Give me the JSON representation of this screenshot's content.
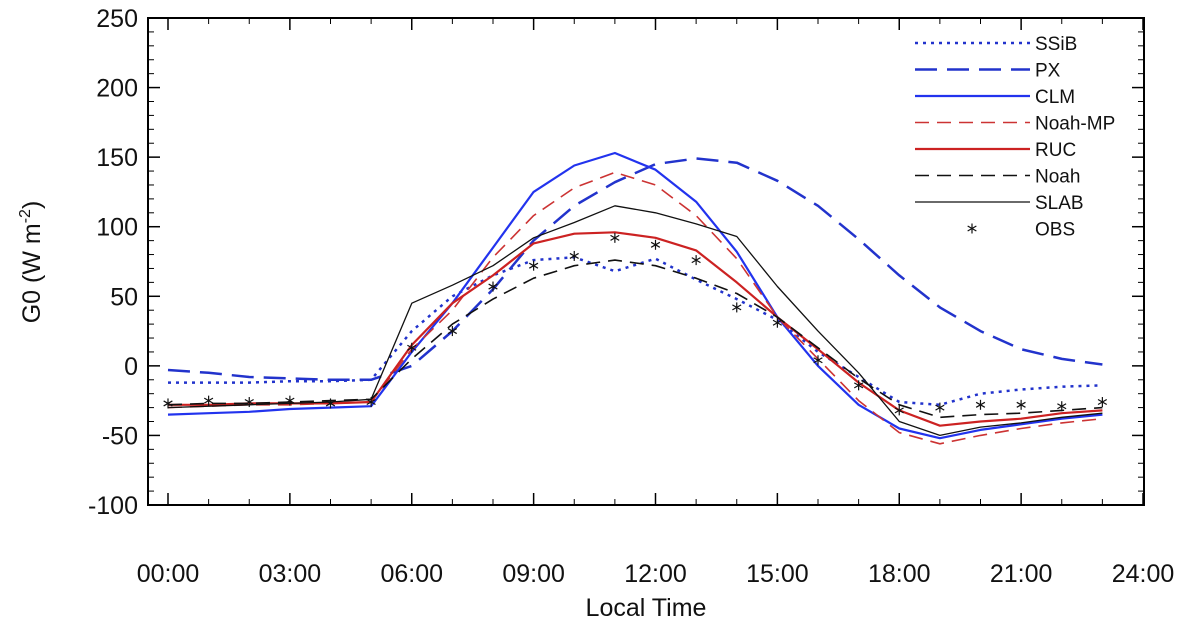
{
  "chart_data": {
    "type": "line",
    "xlabel": "Local Time",
    "ylabel": "G0 (W m",
    "ylabel_sup": "-2",
    "ylabel_close": ")",
    "xlim": [
      0,
      24
    ],
    "ylim": [
      -100,
      250
    ],
    "x_ticks": [
      0,
      3,
      6,
      9,
      12,
      15,
      18,
      21,
      24
    ],
    "x_tick_labels": [
      "00:00",
      "03:00",
      "06:00",
      "09:00",
      "12:00",
      "15:00",
      "18:00",
      "21:00",
      "24:00"
    ],
    "y_ticks": [
      -100,
      -50,
      0,
      50,
      100,
      150,
      200,
      250
    ],
    "y_tick_labels": [
      "-100",
      "-50",
      "0",
      "50",
      "100",
      "150",
      "200",
      "250"
    ],
    "grid": false,
    "legend_position": "top-right",
    "x": [
      0,
      1,
      2,
      3,
      4,
      5,
      6,
      7,
      8,
      9,
      10,
      11,
      12,
      13,
      14,
      15,
      16,
      17,
      18,
      19,
      20,
      21,
      22,
      23
    ],
    "series": [
      {
        "name": "SSiB",
        "color": "#2233cc",
        "style": "dotted",
        "values": [
          -12,
          -12,
          -12,
          -11,
          -11,
          -10,
          25,
          50,
          65,
          76,
          78,
          68,
          77,
          62,
          48,
          33,
          10,
          -8,
          -26,
          -28,
          -20,
          -17,
          -15,
          -14
        ]
      },
      {
        "name": "PX",
        "color": "#2233cc",
        "style": "long-dash",
        "values": [
          -3,
          -5,
          -8,
          -9,
          -10,
          -10,
          0,
          25,
          55,
          90,
          115,
          132,
          145,
          149,
          146,
          133,
          115,
          91,
          65,
          42,
          25,
          12,
          5,
          1
        ]
      },
      {
        "name": "CLM",
        "color": "#2233ee",
        "style": "solid",
        "values": [
          -35,
          -34,
          -33,
          -31,
          -30,
          -29,
          10,
          45,
          85,
          125,
          144,
          153,
          141,
          118,
          82,
          35,
          0,
          -28,
          -45,
          -52,
          -46,
          -42,
          -38,
          -35
        ]
      },
      {
        "name": "Noah-MP",
        "color": "#cc3333",
        "style": "dash",
        "values": [
          -30,
          -29,
          -28,
          -28,
          -27,
          -26,
          12,
          40,
          78,
          108,
          128,
          139,
          130,
          108,
          77,
          35,
          5,
          -25,
          -48,
          -56,
          -50,
          -45,
          -41,
          -38
        ]
      },
      {
        "name": "RUC",
        "color": "#cc2222",
        "style": "solid",
        "values": [
          -28,
          -28,
          -27,
          -27,
          -27,
          -26,
          15,
          45,
          65,
          88,
          95,
          96,
          92,
          83,
          60,
          35,
          12,
          -12,
          -32,
          -43,
          -40,
          -38,
          -34,
          -32
        ]
      },
      {
        "name": "Noah",
        "color": "#111111",
        "style": "dash",
        "values": [
          -28,
          -27,
          -27,
          -26,
          -25,
          -24,
          5,
          30,
          48,
          63,
          72,
          76,
          72,
          63,
          52,
          35,
          13,
          -9,
          -28,
          -37,
          -35,
          -34,
          -32,
          -30
        ]
      },
      {
        "name": "SLAB",
        "color": "#111111",
        "style": "thin-solid",
        "values": [
          -30,
          -29,
          -28,
          -27,
          -26,
          -24,
          45,
          58,
          72,
          92,
          103,
          115,
          110,
          102,
          93,
          57,
          25,
          -5,
          -40,
          -50,
          -44,
          -41,
          -37,
          -34
        ]
      },
      {
        "name": "OBS",
        "color": "#111111",
        "style": "marker-asterisk",
        "values": [
          -27,
          -25,
          -26,
          -25,
          -27,
          -26,
          13,
          25,
          57,
          72,
          79,
          92,
          87,
          76,
          42,
          31,
          4,
          -14,
          -32,
          -30,
          -28,
          -28,
          -29,
          -26
        ]
      }
    ]
  }
}
